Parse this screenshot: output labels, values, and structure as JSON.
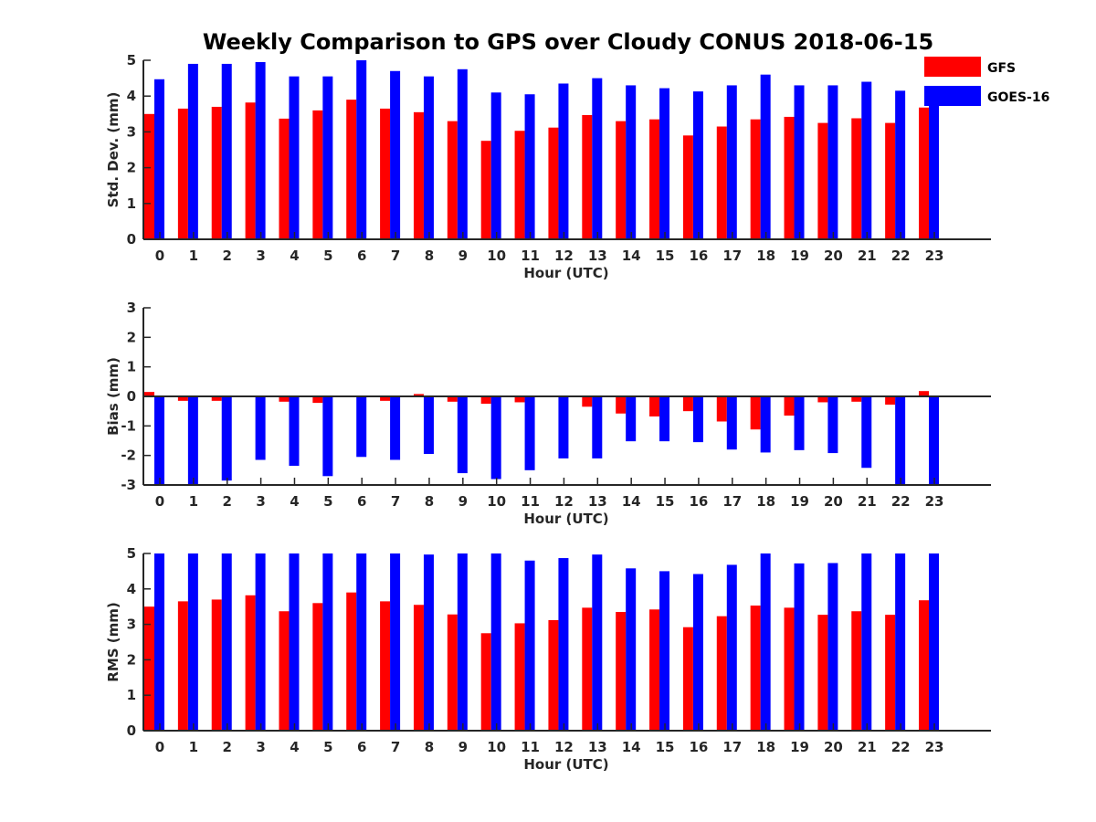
{
  "chart_data": {
    "title": "Weekly Comparison to GPS over Cloudy CONUS 2018-06-15",
    "legend": {
      "position": "top-right",
      "entries": [
        {
          "name": "GFS",
          "color": "#ff0000"
        },
        {
          "name": "GOES-16",
          "color": "#0000ff"
        }
      ]
    },
    "subplots": [
      {
        "type": "bar",
        "ylabel": "Std. Dev. (mm)",
        "xlabel": "Hour (UTC)",
        "ylim": [
          0,
          5
        ],
        "yticks": [
          "0",
          "1",
          "2",
          "3",
          "4",
          "5"
        ],
        "categories": [
          "0",
          "1",
          "2",
          "3",
          "4",
          "5",
          "6",
          "7",
          "8",
          "9",
          "10",
          "11",
          "12",
          "13",
          "14",
          "15",
          "16",
          "17",
          "18",
          "19",
          "20",
          "21",
          "22",
          "23"
        ],
        "series": [
          {
            "name": "GFS",
            "color": "#ff0000",
            "values": [
              3.5,
              3.65,
              3.7,
              3.82,
              3.37,
              3.6,
              3.9,
              3.65,
              3.55,
              3.3,
              2.75,
              3.03,
              3.12,
              3.47,
              3.3,
              3.35,
              2.9,
              3.15,
              3.35,
              3.42,
              3.25,
              3.38,
              3.25,
              3.68
            ]
          },
          {
            "name": "GOES-16",
            "color": "#0000ff",
            "values": [
              4.47,
              4.9,
              4.9,
              4.95,
              4.55,
              4.55,
              5.0,
              4.7,
              4.55,
              4.75,
              4.1,
              4.05,
              4.35,
              4.5,
              4.3,
              4.22,
              4.13,
              4.3,
              4.6,
              4.3,
              4.3,
              4.4,
              4.15,
              3.8
            ]
          }
        ]
      },
      {
        "type": "bar",
        "ylabel": "Bias (mm)",
        "xlabel": "Hour (UTC)",
        "ylim": [
          -3,
          3
        ],
        "yticks": [
          "-3",
          "-2",
          "-1",
          "0",
          "1",
          "2",
          "3"
        ],
        "categories": [
          "0",
          "1",
          "2",
          "3",
          "4",
          "5",
          "6",
          "7",
          "8",
          "9",
          "10",
          "11",
          "12",
          "13",
          "14",
          "15",
          "16",
          "17",
          "18",
          "19",
          "20",
          "21",
          "22",
          "23"
        ],
        "series": [
          {
            "name": "GFS",
            "color": "#ff0000",
            "values": [
              0.15,
              -0.15,
              -0.15,
              0.02,
              -0.18,
              -0.22,
              0.02,
              -0.15,
              0.08,
              -0.18,
              -0.25,
              -0.2,
              -0.02,
              -0.35,
              -0.58,
              -0.68,
              -0.5,
              -0.85,
              -1.12,
              -0.65,
              -0.2,
              -0.18,
              -0.28,
              0.18
            ]
          },
          {
            "name": "GOES-16",
            "color": "#0000ff",
            "values": [
              -3.0,
              -3.0,
              -2.85,
              -2.15,
              -2.35,
              -2.7,
              -2.05,
              -2.15,
              -1.95,
              -2.6,
              -2.8,
              -2.5,
              -2.1,
              -2.1,
              -1.52,
              -1.52,
              -1.55,
              -1.8,
              -1.9,
              -1.82,
              -1.92,
              -2.42,
              -3.0,
              -3.0
            ]
          }
        ]
      },
      {
        "type": "bar",
        "ylabel": "RMS (mm)",
        "xlabel": "Hour (UTC)",
        "ylim": [
          0,
          5
        ],
        "yticks": [
          "0",
          "1",
          "2",
          "3",
          "4",
          "5"
        ],
        "categories": [
          "0",
          "1",
          "2",
          "3",
          "4",
          "5",
          "6",
          "7",
          "8",
          "9",
          "10",
          "11",
          "12",
          "13",
          "14",
          "15",
          "16",
          "17",
          "18",
          "19",
          "20",
          "21",
          "22",
          "23"
        ],
        "series": [
          {
            "name": "GFS",
            "color": "#ff0000",
            "values": [
              3.5,
              3.65,
              3.7,
              3.82,
              3.37,
              3.6,
              3.9,
              3.65,
              3.55,
              3.28,
              2.75,
              3.03,
              3.12,
              3.47,
              3.35,
              3.42,
              2.92,
              3.23,
              3.53,
              3.47,
              3.27,
              3.37,
              3.27,
              3.68
            ]
          },
          {
            "name": "GOES-16",
            "color": "#0000ff",
            "values": [
              5.0,
              5.0,
              5.0,
              5.0,
              5.0,
              5.0,
              5.0,
              5.0,
              4.97,
              5.0,
              5.0,
              4.8,
              4.87,
              4.97,
              4.58,
              4.5,
              4.42,
              4.68,
              5.0,
              4.72,
              4.73,
              5.0,
              5.0,
              5.0
            ]
          }
        ]
      }
    ]
  }
}
